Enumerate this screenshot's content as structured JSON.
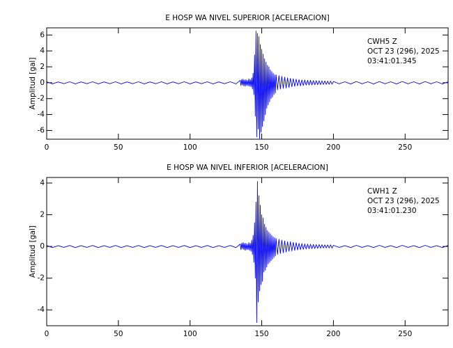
{
  "chart_data": [
    {
      "type": "line",
      "title": "E HOSP WA NIVEL SUPERIOR [ACELERACION]",
      "y_label": "Amplitud [gal]",
      "annotations": [
        "CWH5   Z",
        "OCT 23 (296), 2025",
        "03:41:01.345"
      ],
      "xlim": [
        0,
        280
      ],
      "xticks": [
        0,
        50,
        100,
        150,
        200,
        250
      ],
      "ylim": [
        -7.1,
        6.9
      ],
      "yticks": [
        -6,
        -4,
        -2,
        0,
        2,
        4,
        6
      ],
      "x": [
        0,
        4,
        8,
        12,
        16,
        20,
        24,
        28,
        32,
        36,
        40,
        44,
        48,
        52,
        56,
        60,
        64,
        68,
        72,
        76,
        80,
        84,
        88,
        92,
        96,
        100,
        104,
        108,
        112,
        116,
        120,
        124,
        128,
        132,
        135,
        135.5,
        136,
        136.5,
        137,
        137.5,
        138,
        138.5,
        139,
        139.5,
        140,
        140.5,
        141,
        141.5,
        142,
        142.5,
        143,
        143.5,
        144,
        144.5,
        145,
        145.5,
        146,
        146.5,
        147,
        147.5,
        148,
        148.5,
        149,
        149.5,
        150,
        150.5,
        151,
        151.5,
        152,
        152.5,
        153,
        153.5,
        154,
        154.5,
        155,
        155.5,
        156,
        156.5,
        157,
        157.5,
        158,
        158.5,
        159,
        159.5,
        160,
        161,
        162,
        163,
        164,
        165,
        166,
        167,
        168,
        169,
        170,
        171,
        172,
        173,
        174,
        175,
        176,
        177,
        178,
        179,
        180,
        181,
        182,
        183,
        184,
        185,
        186,
        187,
        188,
        189,
        190,
        191,
        192,
        193,
        194,
        195,
        196,
        197,
        198,
        199,
        200,
        204,
        208,
        212,
        216,
        220,
        224,
        228,
        232,
        236,
        240,
        244,
        248,
        252,
        256,
        260,
        264,
        268,
        272,
        276,
        280
      ],
      "series": [
        {
          "color": "#0000ff",
          "values": [
            0.12,
            -0.14,
            0.1,
            -0.12,
            0.12,
            -0.14,
            0.1,
            -0.12,
            0.12,
            -0.14,
            0.1,
            -0.12,
            0.12,
            -0.14,
            0.1,
            -0.12,
            0.12,
            -0.14,
            0.1,
            -0.12,
            0.12,
            -0.14,
            0.1,
            -0.12,
            0.12,
            -0.14,
            0.1,
            -0.12,
            0.12,
            -0.14,
            0.1,
            -0.12,
            0.12,
            -0.14,
            0.3,
            -0.35,
            0.4,
            -0.3,
            0.45,
            -0.4,
            0.35,
            -0.45,
            0.4,
            -0.35,
            0.3,
            -0.4,
            0.5,
            -0.45,
            0.4,
            -0.5,
            0.6,
            -0.8,
            1.2,
            -1.5,
            3.5,
            -4.2,
            6.5,
            -6.8,
            6.2,
            -5.8,
            5.8,
            -7.0,
            4.8,
            -6.2,
            4.2,
            -5.5,
            3.6,
            -4.8,
            3.0,
            -4.0,
            2.6,
            -3.2,
            2.2,
            -2.8,
            2.0,
            -2.4,
            1.6,
            -2.0,
            1.4,
            -1.8,
            1.2,
            -1.5,
            1.0,
            -1.3,
            1.0,
            -0.9,
            0.9,
            -0.8,
            0.8,
            -0.7,
            0.7,
            -0.65,
            0.6,
            -0.6,
            0.55,
            -0.5,
            0.5,
            -0.45,
            0.45,
            -0.4,
            0.4,
            -0.4,
            0.35,
            -0.35,
            0.35,
            -0.3,
            0.3,
            -0.3,
            0.3,
            -0.28,
            0.28,
            -0.26,
            0.26,
            -0.25,
            0.25,
            -0.24,
            0.24,
            -0.22,
            0.22,
            -0.2,
            0.2,
            -0.2,
            0.2,
            -0.18,
            0.15,
            -0.13,
            0.12,
            -0.15,
            0.15,
            -0.13,
            0.12,
            -0.15,
            0.15,
            -0.13,
            0.12,
            -0.15,
            0.15,
            -0.13,
            0.12,
            -0.15,
            0.15,
            -0.13,
            0.12,
            -0.15,
            0.12
          ]
        }
      ]
    },
    {
      "type": "line",
      "title": "E HOSP WA NIVEL INFERIOR [ACELERACION]",
      "y_label": "Amplitud [gal]",
      "annotations": [
        "CWH1   Z",
        "OCT 23 (296), 2025",
        "03:41:01.230"
      ],
      "xlim": [
        0,
        280
      ],
      "xticks": [
        0,
        50,
        100,
        150,
        200,
        250
      ],
      "ylim": [
        -5,
        4.35
      ],
      "yticks": [
        -4,
        -2,
        0,
        2,
        4
      ],
      "x": [
        0,
        4,
        8,
        12,
        16,
        20,
        24,
        28,
        32,
        36,
        40,
        44,
        48,
        52,
        56,
        60,
        64,
        68,
        72,
        76,
        80,
        84,
        88,
        92,
        96,
        100,
        104,
        108,
        112,
        116,
        120,
        124,
        128,
        132,
        135,
        135.5,
        136,
        136.5,
        137,
        137.5,
        138,
        138.5,
        139,
        139.5,
        140,
        140.5,
        141,
        141.5,
        142,
        142.5,
        143,
        143.5,
        144,
        144.5,
        145,
        145.5,
        146,
        146.5,
        147,
        147.5,
        148,
        148.5,
        149,
        149.5,
        150,
        150.5,
        151,
        151.5,
        152,
        152.5,
        153,
        153.5,
        154,
        154.5,
        155,
        155.5,
        156,
        156.5,
        157,
        157.5,
        158,
        158.5,
        159,
        159.5,
        160,
        161,
        162,
        163,
        164,
        165,
        166,
        167,
        168,
        169,
        170,
        171,
        172,
        173,
        174,
        175,
        176,
        177,
        178,
        179,
        180,
        181,
        182,
        183,
        184,
        185,
        186,
        187,
        188,
        189,
        190,
        191,
        192,
        193,
        194,
        195,
        196,
        197,
        198,
        199,
        200,
        204,
        208,
        212,
        216,
        220,
        224,
        228,
        232,
        236,
        240,
        244,
        248,
        252,
        256,
        260,
        264,
        268,
        272,
        276,
        280
      ],
      "series": [
        {
          "color": "#0000ff",
          "values": [
            0.06,
            -0.07,
            0.05,
            -0.06,
            0.06,
            -0.07,
            0.05,
            -0.06,
            0.06,
            -0.07,
            0.05,
            -0.06,
            0.06,
            -0.07,
            0.05,
            -0.06,
            0.06,
            -0.07,
            0.05,
            -0.06,
            0.06,
            -0.07,
            0.05,
            -0.06,
            0.06,
            -0.07,
            0.05,
            -0.06,
            0.06,
            -0.07,
            0.05,
            -0.06,
            0.06,
            -0.07,
            0.15,
            -0.2,
            0.2,
            -0.15,
            0.25,
            -0.2,
            0.2,
            -0.25,
            0.2,
            -0.2,
            0.15,
            -0.2,
            0.25,
            -0.25,
            0.2,
            -0.3,
            0.4,
            -0.5,
            0.7,
            -1.0,
            1.5,
            -2.0,
            2.8,
            -4.8,
            4.1,
            -3.5,
            3.2,
            -2.8,
            2.6,
            -2.4,
            2.0,
            -2.2,
            1.8,
            -1.6,
            1.4,
            -1.5,
            1.2,
            -1.3,
            1.0,
            -1.1,
            0.9,
            -1.0,
            0.8,
            -0.9,
            0.7,
            -0.8,
            0.6,
            -0.7,
            0.55,
            -0.6,
            0.5,
            -0.5,
            0.45,
            -0.45,
            0.4,
            -0.4,
            0.35,
            -0.35,
            0.3,
            -0.3,
            0.3,
            -0.28,
            0.26,
            -0.25,
            0.24,
            -0.22,
            0.2,
            -0.2,
            0.18,
            -0.18,
            0.16,
            -0.16,
            0.15,
            -0.15,
            0.14,
            -0.14,
            0.13,
            -0.13,
            0.12,
            -0.12,
            0.12,
            -0.11,
            0.11,
            -0.1,
            0.1,
            -0.1,
            0.1,
            -0.1,
            0.1,
            -0.1,
            0.07,
            -0.06,
            0.05,
            -0.07,
            0.07,
            -0.06,
            0.05,
            -0.07,
            0.07,
            -0.06,
            0.05,
            -0.07,
            0.07,
            -0.06,
            0.05,
            -0.07,
            0.07,
            -0.06,
            0.05,
            -0.07,
            0.07
          ]
        }
      ]
    }
  ]
}
